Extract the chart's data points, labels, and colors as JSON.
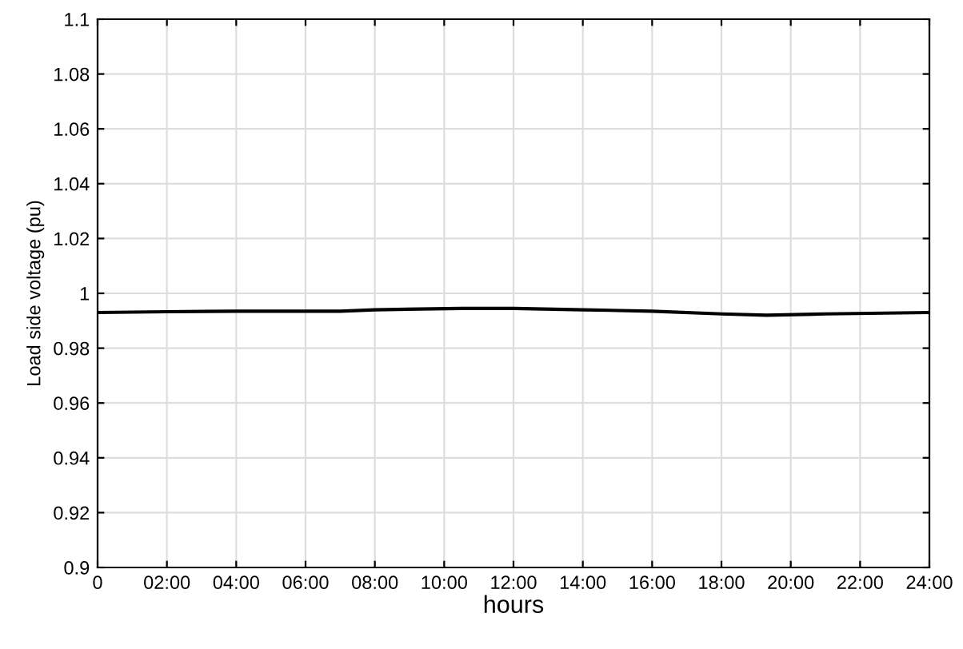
{
  "chart_data": {
    "type": "line",
    "xlabel": "hours",
    "ylabel": "Load side voltage (pu)",
    "x": [
      0,
      2,
      4,
      6,
      7,
      8,
      10.5,
      12,
      14,
      16,
      18,
      19.3,
      21,
      24
    ],
    "series": [
      {
        "color": "#000000",
        "values": [
          0.993,
          0.9933,
          0.9935,
          0.9935,
          0.9935,
          0.994,
          0.9945,
          0.9945,
          0.994,
          0.9935,
          0.9925,
          0.992,
          0.9925,
          0.993
        ]
      }
    ],
    "xlim": [
      0,
      24
    ],
    "xticks": [
      0,
      {
        "value": 2,
        "label": "02:00"
      },
      {
        "value": 4,
        "label": "04:00"
      },
      {
        "value": 6,
        "label": "06:00"
      },
      {
        "value": 8,
        "label": "08:00"
      },
      {
        "value": 10,
        "label": "10:00"
      },
      {
        "value": 12,
        "label": "12:00"
      },
      {
        "value": 14,
        "label": "14:00"
      },
      {
        "value": 16,
        "label": "16:00"
      },
      {
        "value": 18,
        "label": "18:00"
      },
      {
        "value": 20,
        "label": "20:00"
      },
      {
        "value": 22,
        "label": "22:00"
      },
      {
        "value": 24,
        "label": "24:00"
      }
    ],
    "ylim": [
      0.9,
      1.1
    ],
    "yticks": [
      0.9,
      0.92,
      0.94,
      0.96,
      0.98,
      1,
      1.02,
      1.04,
      1.06,
      1.08,
      1.1
    ],
    "grid": true,
    "marker": "none",
    "line_style": "solid"
  }
}
